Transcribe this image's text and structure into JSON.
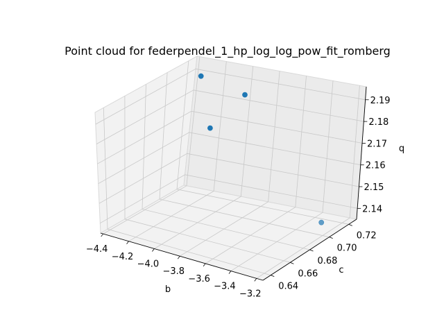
{
  "chart_data": {
    "type": "scatter3d",
    "title": "Point cloud for federpendel_1_hp_log_log_pow_fit_romberg",
    "x_axis": {
      "label": "b",
      "range": [
        -4.42,
        -3.15
      ],
      "ticks": [
        -4.4,
        -4.2,
        -4.0,
        -3.8,
        -3.6,
        -3.4,
        -3.2
      ],
      "tick_labels": [
        "−4.4",
        "−4.2",
        "−4.0",
        "−3.8",
        "−3.6",
        "−3.4",
        "−3.2"
      ]
    },
    "y_axis": {
      "label": "c",
      "range": [
        0.632,
        0.728
      ],
      "ticks": [
        0.64,
        0.66,
        0.68,
        0.7,
        0.72
      ],
      "tick_labels": [
        "0.64",
        "0.66",
        "0.68",
        "0.70",
        "0.72"
      ]
    },
    "z_axis": {
      "label": "q",
      "range": [
        2.135,
        2.196
      ],
      "ticks": [
        2.14,
        2.15,
        2.16,
        2.17,
        2.18,
        2.19
      ],
      "tick_labels": [
        "2.14",
        "2.15",
        "2.16",
        "2.17",
        "2.18",
        "2.19"
      ]
    },
    "points": [
      {
        "b": -4.26,
        "c": 0.712,
        "q": 2.193
      },
      {
        "b": -3.97,
        "c": 0.718,
        "q": 2.186
      },
      {
        "b": -4.01,
        "c": 0.69,
        "q": 2.178
      },
      {
        "b": -3.25,
        "c": 0.705,
        "q": 2.139
      }
    ],
    "marker_color": "#1f77b4",
    "pane_color": "#f2f2f2",
    "grid": true,
    "legend": false
  }
}
